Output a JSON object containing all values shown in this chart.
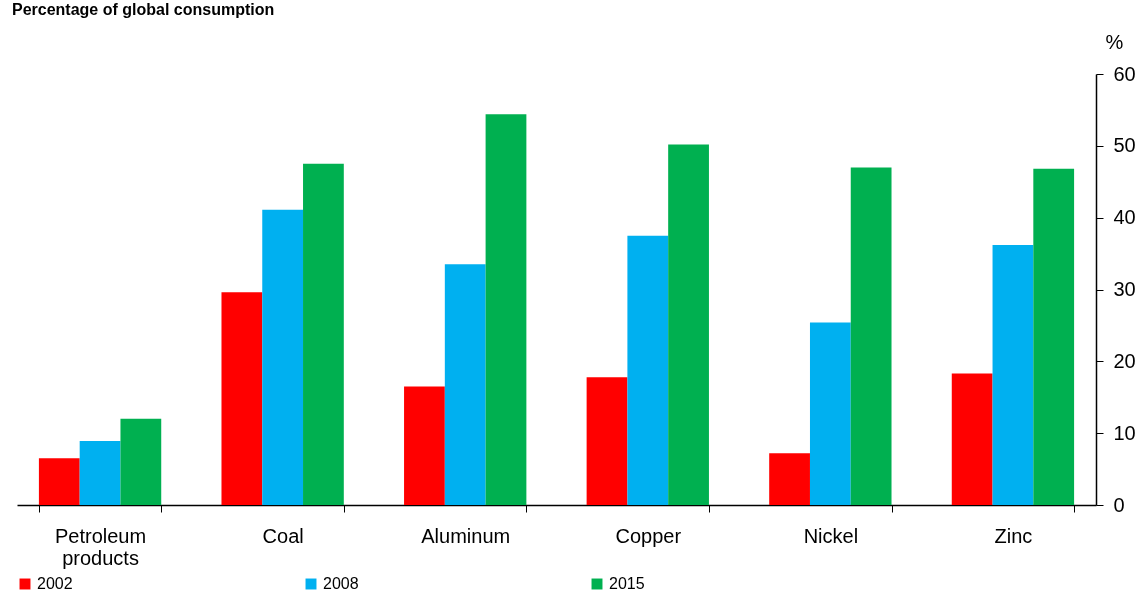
{
  "chart_data": {
    "type": "bar",
    "title": "Percentage of global consumption",
    "ylabel": "%",
    "categories": [
      "Petroleum products",
      "Coal",
      "Aluminum",
      "Copper",
      "Nickel",
      "Zinc"
    ],
    "series": [
      {
        "name": "2002",
        "color": "#ff0000",
        "values": [
          6.5,
          29.6,
          16.5,
          17.8,
          7.2,
          18.3
        ]
      },
      {
        "name": "2008",
        "color": "#00b0f0",
        "values": [
          8.9,
          41.1,
          33.5,
          37.5,
          25.4,
          36.2
        ]
      },
      {
        "name": "2015",
        "color": "#00b050",
        "values": [
          12.0,
          47.5,
          54.4,
          50.2,
          47.0,
          46.8
        ]
      }
    ],
    "ylim": [
      0,
      60
    ],
    "yticks": [
      0,
      10,
      20,
      30,
      40,
      50,
      60
    ],
    "grid": false,
    "legend": "bottom"
  }
}
